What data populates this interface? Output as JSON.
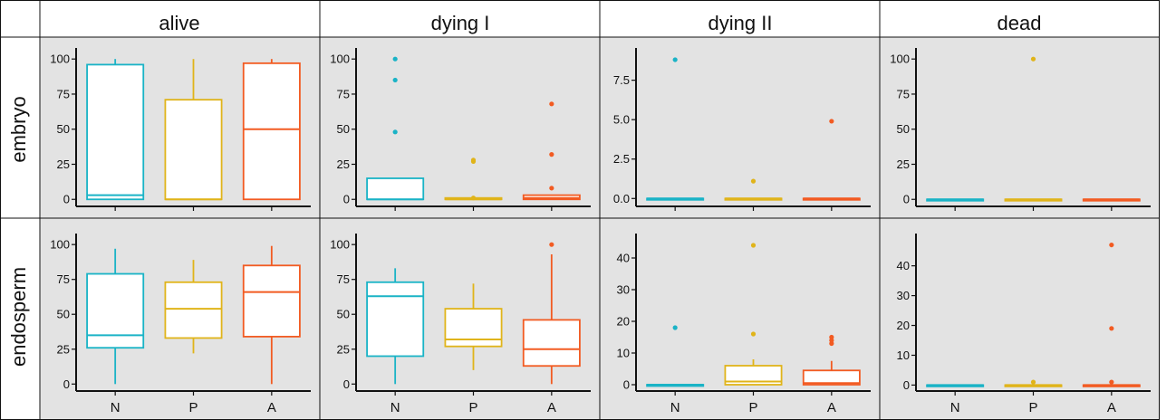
{
  "columns": [
    "alive",
    "dying I",
    "dying II",
    "dead"
  ],
  "rows": [
    "embryo",
    "endosperm"
  ],
  "group_colors": {
    "N": "#1ab3c6",
    "P": "#e0b41a",
    "A": "#f25b22"
  },
  "background": "#e3e3e3",
  "chart_data": [
    {
      "type": "box",
      "row": "embryo",
      "column": "alive",
      "categories": [
        "N",
        "P",
        "A"
      ],
      "yticks": [
        0,
        25,
        50,
        75,
        100
      ],
      "ytick_labels": [
        "0",
        "25",
        "50",
        "75",
        "100"
      ],
      "ylim": [
        -5,
        104
      ],
      "boxes": [
        {
          "group": "N",
          "min": 0,
          "q1": 0,
          "median": 3,
          "q3": 96,
          "max": 100,
          "outliers": []
        },
        {
          "group": "P",
          "min": 0,
          "q1": 0,
          "median": 0,
          "q3": 71,
          "max": 100,
          "outliers": []
        },
        {
          "group": "A",
          "min": 0,
          "q1": 0,
          "median": 50,
          "q3": 97,
          "max": 100,
          "outliers": []
        }
      ]
    },
    {
      "type": "box",
      "row": "embryo",
      "column": "dying I",
      "categories": [
        "N",
        "P",
        "A"
      ],
      "yticks": [
        0,
        25,
        50,
        75,
        100
      ],
      "ytick_labels": [
        "0",
        "25",
        "50",
        "75",
        "100"
      ],
      "ylim": [
        -5,
        104
      ],
      "boxes": [
        {
          "group": "N",
          "min": 0,
          "q1": 0,
          "median": 0,
          "q3": 15,
          "max": 15,
          "outliers": [
            48,
            85,
            100
          ]
        },
        {
          "group": "P",
          "min": 0,
          "q1": 0,
          "median": 0,
          "q3": 1,
          "max": 1,
          "outliers": [
            1,
            27,
            28
          ]
        },
        {
          "group": "A",
          "min": 0,
          "q1": 0,
          "median": 1,
          "q3": 3,
          "max": 3,
          "outliers": [
            8,
            32,
            68
          ]
        }
      ]
    },
    {
      "type": "box",
      "row": "embryo",
      "column": "dying II",
      "categories": [
        "N",
        "P",
        "A"
      ],
      "yticks": [
        0,
        2.5,
        5,
        7.5
      ],
      "ytick_labels": [
        "0.0",
        "2.5",
        "5.0",
        "7.5"
      ],
      "ylim": [
        -0.5,
        9.2
      ],
      "boxes": [
        {
          "group": "N",
          "min": 0,
          "q1": 0,
          "median": 0,
          "q3": 0,
          "max": 0,
          "outliers": [
            8.8
          ]
        },
        {
          "group": "P",
          "min": 0,
          "q1": 0,
          "median": 0,
          "q3": 0,
          "max": 0,
          "outliers": [
            1.1
          ]
        },
        {
          "group": "A",
          "min": 0,
          "q1": 0,
          "median": 0,
          "q3": 0,
          "max": 0,
          "outliers": [
            4.9
          ]
        }
      ]
    },
    {
      "type": "box",
      "row": "embryo",
      "column": "dead",
      "categories": [
        "N",
        "P",
        "A"
      ],
      "yticks": [
        0,
        25,
        50,
        75,
        100
      ],
      "ytick_labels": [
        "0",
        "25",
        "50",
        "75",
        "100"
      ],
      "ylim": [
        -5,
        104
      ],
      "boxes": [
        {
          "group": "N",
          "min": 0,
          "q1": 0,
          "median": 0,
          "q3": 0,
          "max": 0,
          "outliers": []
        },
        {
          "group": "P",
          "min": 0,
          "q1": 0,
          "median": 0,
          "q3": 0,
          "max": 0,
          "outliers": [
            100
          ]
        },
        {
          "group": "A",
          "min": 0,
          "q1": 0,
          "median": 0,
          "q3": 0,
          "max": 0,
          "outliers": []
        }
      ]
    },
    {
      "type": "box",
      "row": "endosperm",
      "column": "alive",
      "categories": [
        "N",
        "P",
        "A"
      ],
      "yticks": [
        0,
        25,
        50,
        75,
        100
      ],
      "ytick_labels": [
        "0",
        "25",
        "50",
        "75",
        "100"
      ],
      "ylim": [
        -5,
        104
      ],
      "boxes": [
        {
          "group": "N",
          "min": 0,
          "q1": 26,
          "median": 35,
          "q3": 79,
          "max": 97,
          "outliers": []
        },
        {
          "group": "P",
          "min": 22,
          "q1": 33,
          "median": 54,
          "q3": 73,
          "max": 89,
          "outliers": []
        },
        {
          "group": "A",
          "min": 0,
          "q1": 34,
          "median": 66,
          "q3": 85,
          "max": 99,
          "outliers": []
        }
      ]
    },
    {
      "type": "box",
      "row": "endosperm",
      "column": "dying I",
      "categories": [
        "N",
        "P",
        "A"
      ],
      "yticks": [
        0,
        25,
        50,
        75,
        100
      ],
      "ytick_labels": [
        "0",
        "25",
        "50",
        "75",
        "100"
      ],
      "ylim": [
        -5,
        104
      ],
      "boxes": [
        {
          "group": "N",
          "min": 0,
          "q1": 20,
          "median": 63,
          "q3": 73,
          "max": 83,
          "outliers": []
        },
        {
          "group": "P",
          "min": 10,
          "q1": 27,
          "median": 32,
          "q3": 54,
          "max": 72,
          "outliers": []
        },
        {
          "group": "A",
          "min": 0,
          "q1": 13,
          "median": 25,
          "q3": 46,
          "max": 93,
          "outliers": [
            100
          ]
        }
      ]
    },
    {
      "type": "box",
      "row": "endosperm",
      "column": "dying II",
      "categories": [
        "N",
        "P",
        "A"
      ],
      "yticks": [
        0,
        10,
        20,
        30,
        40
      ],
      "ytick_labels": [
        "0",
        "10",
        "20",
        "30",
        "40"
      ],
      "ylim": [
        -2,
        46
      ],
      "boxes": [
        {
          "group": "N",
          "min": 0,
          "q1": 0,
          "median": 0,
          "q3": 0,
          "max": 0,
          "outliers": [
            18
          ]
        },
        {
          "group": "P",
          "min": 0,
          "q1": 0,
          "median": 1,
          "q3": 6,
          "max": 8,
          "outliers": [
            16,
            44
          ]
        },
        {
          "group": "A",
          "min": 0,
          "q1": 0,
          "median": 0.5,
          "q3": 4.5,
          "max": 7.5,
          "outliers": [
            13,
            14,
            15
          ]
        }
      ]
    },
    {
      "type": "box",
      "row": "endosperm",
      "column": "dead",
      "categories": [
        "N",
        "P",
        "A"
      ],
      "yticks": [
        0,
        10,
        20,
        30,
        40
      ],
      "ytick_labels": [
        "0",
        "10",
        "20",
        "30",
        "40"
      ],
      "ylim": [
        -2,
        49
      ],
      "boxes": [
        {
          "group": "N",
          "min": 0,
          "q1": 0,
          "median": 0,
          "q3": 0,
          "max": 0,
          "outliers": []
        },
        {
          "group": "P",
          "min": 0,
          "q1": 0,
          "median": 0,
          "q3": 0,
          "max": 0,
          "outliers": [
            1
          ]
        },
        {
          "group": "A",
          "min": 0,
          "q1": 0,
          "median": 0,
          "q3": 0,
          "max": 0,
          "outliers": [
            1,
            19,
            47
          ]
        }
      ]
    }
  ]
}
